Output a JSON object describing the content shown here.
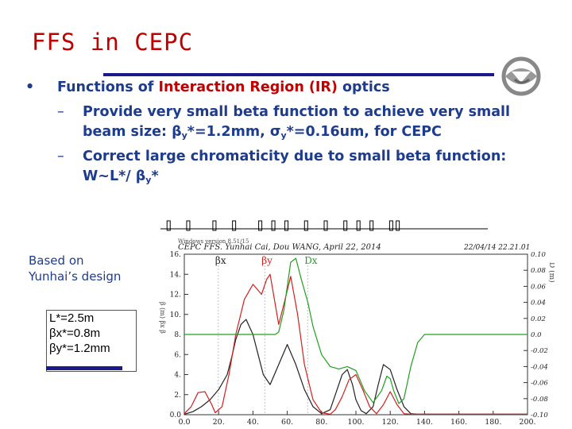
{
  "slide": {
    "title": "FFS in CEPC",
    "bullet_dot": "•",
    "bullet_dash": "–",
    "bullet1": {
      "pre": "Functions of ",
      "highlight": "Interaction Region (IR)",
      "post": " optics"
    },
    "sub1": {
      "text1": "Provide very small beta function to achieve very small beam size: β",
      "sub_y1": "y",
      "text2": "*=1.2mm, σ",
      "sub_y2": "y",
      "text3": "*=0.16um, for CEPC"
    },
    "sub2": {
      "text1": "Correct large chromaticity due to small beta function: W~L*/ β",
      "sub_y": "y",
      "text2": "*"
    },
    "based_on": {
      "line1": "Based on",
      "line2": "Yunhai’s design"
    },
    "params": [
      "L*=2.5m",
      "βx*=0.8m",
      "βy*=1.2mm"
    ]
  },
  "chart_data": {
    "type": "line",
    "header_left": "CEPC FFS. Yunhai Cai, Dou WANG, April 22, 2014",
    "header_left2": "Windows version 8.51/15",
    "header_right": "22/04/14  22.21.01",
    "legend": [
      "βx",
      "βy",
      "Dx"
    ],
    "colors": {
      "bx": "#222222",
      "by": "#d02020",
      "dx": "#20a020"
    },
    "xlim": [
      0,
      200
    ],
    "ylim_left": [
      0,
      16
    ],
    "ylim_right": [
      -0.1,
      0.1
    ],
    "x_ticks": [
      "0.0",
      "20.",
      "40.",
      "60.",
      "80.",
      "100.",
      "120.",
      "140.",
      "160.",
      "180.",
      "200."
    ],
    "y_left_ticks": [
      "0.0",
      "2.",
      "4.",
      "6.",
      "8.",
      "10.",
      "12.",
      "14.",
      "16."
    ],
    "y_right_ticks": [
      "-0.10",
      "-0.08",
      "-0.06",
      "-0.04",
      "-0.02",
      "0.0",
      "0.02",
      "0.04",
      "0.06",
      "0.08",
      "0.10"
    ],
    "ylabel_left": "β (m) βx β",
    "ylabel_right": "D (m)",
    "series": [
      {
        "name": "βx",
        "key": "bx",
        "axis": "left",
        "x": [
          0,
          5,
          10,
          15,
          20,
          25,
          28,
          30,
          33,
          36,
          40,
          43,
          46,
          50,
          55,
          60,
          65,
          70,
          75,
          80,
          85,
          88,
          92,
          95,
          98,
          100,
          103,
          106,
          110,
          113,
          116,
          120,
          124,
          128,
          132,
          136,
          140,
          145,
          150,
          160,
          170,
          180,
          200
        ],
        "y": [
          0.05,
          0.3,
          0.8,
          1.5,
          2.5,
          4.0,
          6.0,
          7.5,
          9.0,
          9.5,
          8.0,
          6.0,
          4.0,
          3.0,
          5.0,
          7.0,
          5.0,
          2.5,
          0.8,
          0.1,
          0.5,
          2.0,
          4.0,
          4.5,
          3.0,
          1.5,
          0.4,
          0.1,
          0.8,
          3.0,
          5.0,
          4.5,
          2.5,
          0.8,
          0.1,
          0.05,
          0.05,
          0.05,
          0.05,
          0.05,
          0.05,
          0.05,
          0.05
        ]
      },
      {
        "name": "βy",
        "key": "by",
        "axis": "left",
        "x": [
          0,
          4,
          8,
          12,
          16,
          18,
          22,
          26,
          30,
          35,
          40,
          45,
          48,
          50,
          52,
          55,
          58,
          62,
          66,
          70,
          75,
          80,
          85,
          88,
          92,
          96,
          100,
          104,
          108,
          112,
          116,
          120,
          124,
          128,
          132,
          136,
          140,
          150,
          160,
          200
        ],
        "y": [
          0.1,
          0.8,
          2.2,
          2.3,
          1.0,
          0.2,
          0.8,
          4.0,
          8.0,
          11.5,
          13.0,
          12.0,
          13.5,
          14.0,
          12.0,
          9.0,
          11.0,
          13.8,
          10.0,
          5.0,
          1.5,
          0.2,
          0.05,
          0.5,
          1.8,
          3.5,
          4.0,
          2.5,
          0.8,
          0.1,
          1.0,
          2.3,
          1.0,
          0.1,
          0.05,
          0.05,
          0.05,
          0.05,
          0.05,
          0.05
        ]
      },
      {
        "name": "Dx",
        "key": "dx",
        "axis": "right",
        "x": [
          0,
          10,
          20,
          25,
          30,
          35,
          40,
          43,
          46,
          50,
          53,
          55,
          58,
          62,
          65,
          68,
          72,
          75,
          80,
          85,
          90,
          95,
          100,
          105,
          110,
          115,
          118,
          120,
          122,
          125,
          128,
          132,
          136,
          140,
          145,
          150,
          155,
          160,
          170,
          180,
          200
        ],
        "y": [
          0,
          0,
          0,
          0,
          0,
          0,
          0,
          0,
          0,
          0,
          0,
          0.003,
          0.03,
          0.09,
          0.095,
          0.07,
          0.04,
          0.01,
          -0.025,
          -0.04,
          -0.043,
          -0.04,
          -0.045,
          -0.07,
          -0.085,
          -0.07,
          -0.052,
          -0.055,
          -0.07,
          -0.086,
          -0.08,
          -0.04,
          -0.01,
          0,
          0,
          0,
          0,
          0,
          0,
          0,
          0
        ]
      }
    ]
  }
}
